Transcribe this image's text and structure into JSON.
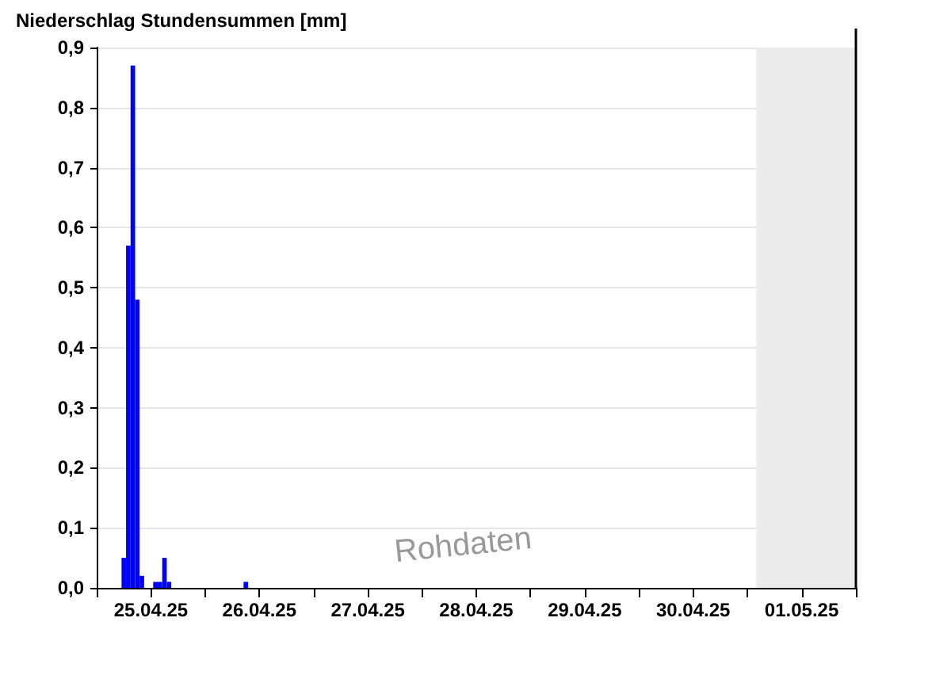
{
  "chart_data": {
    "type": "bar",
    "ylabel": "Niederschlag Stundensummen [mm]",
    "series": [
      {
        "color": "#0000ff",
        "x": [
          "--04-25T06:00",
          "--04-25T07:00",
          "--04-25T08:00",
          "--04-25T09:00",
          "--04-25T10:00",
          "--04-25T13:00",
          "--04-25T14:00",
          "--04-25T15:00",
          "--04-25T16:00",
          "--04-26T09:00"
        ],
        "values": [
          0.05,
          0.57,
          0.87,
          0.48,
          0.02,
          0.01,
          0.01,
          0.05,
          0.01,
          0.01
        ]
      }
    ],
    "xlim": [
      "--04-25T00:00",
      "--05-02T00:00"
    ],
    "xticks": [
      {
        "value": "--04-25T00:00",
        "label": null
      },
      {
        "value": "--04-25T12:00",
        "label": "25.04.25"
      },
      {
        "value": "--04-26T00:00",
        "label": null
      },
      {
        "value": "--04-26T12:00",
        "label": "26.04.25"
      },
      {
        "value": "--04-27T00:00",
        "label": null
      },
      {
        "value": "--04-27T12:00",
        "label": "27.04.25"
      },
      {
        "value": "--04-28T00:00",
        "label": null
      },
      {
        "value": "--04-28T12:00",
        "label": "28.04.25"
      },
      {
        "value": "--04-29T00:00",
        "label": null
      },
      {
        "value": "--04-29T12:00",
        "label": "29.04.25"
      },
      {
        "value": "--04-30T00:00",
        "label": null
      },
      {
        "value": "--04-30T12:00",
        "label": "30.04.25"
      },
      {
        "value": "--05-01T00:00",
        "label": null
      },
      {
        "value": "--05-01T12:00",
        "label": "01.05.25"
      },
      {
        "value": "--05-02T00:00",
        "label": null
      }
    ],
    "ylim": [
      0,
      0.9
    ],
    "yticks": [
      {
        "value": 0,
        "label": "0,0"
      },
      {
        "value": 0.1,
        "label": "0,1"
      },
      {
        "value": 0.2,
        "label": "0,2"
      },
      {
        "value": 0.3,
        "label": "0,3"
      },
      {
        "value": 0.4,
        "label": "0,4"
      },
      {
        "value": 0.5,
        "label": "0,5"
      },
      {
        "value": 0.6,
        "label": "0,6"
      },
      {
        "value": 0.7,
        "label": "0,7"
      },
      {
        "value": 0.8,
        "label": "0,8"
      },
      {
        "value": 0.9,
        "label": "0,9"
      }
    ],
    "grid": "y",
    "bands": [
      {
        "axis": "x",
        "from": "--05-01T02:00",
        "to": "--05-02T00:00",
        "color": "#ececec"
      }
    ],
    "annotations": [
      "Rohdaten"
    ]
  }
}
